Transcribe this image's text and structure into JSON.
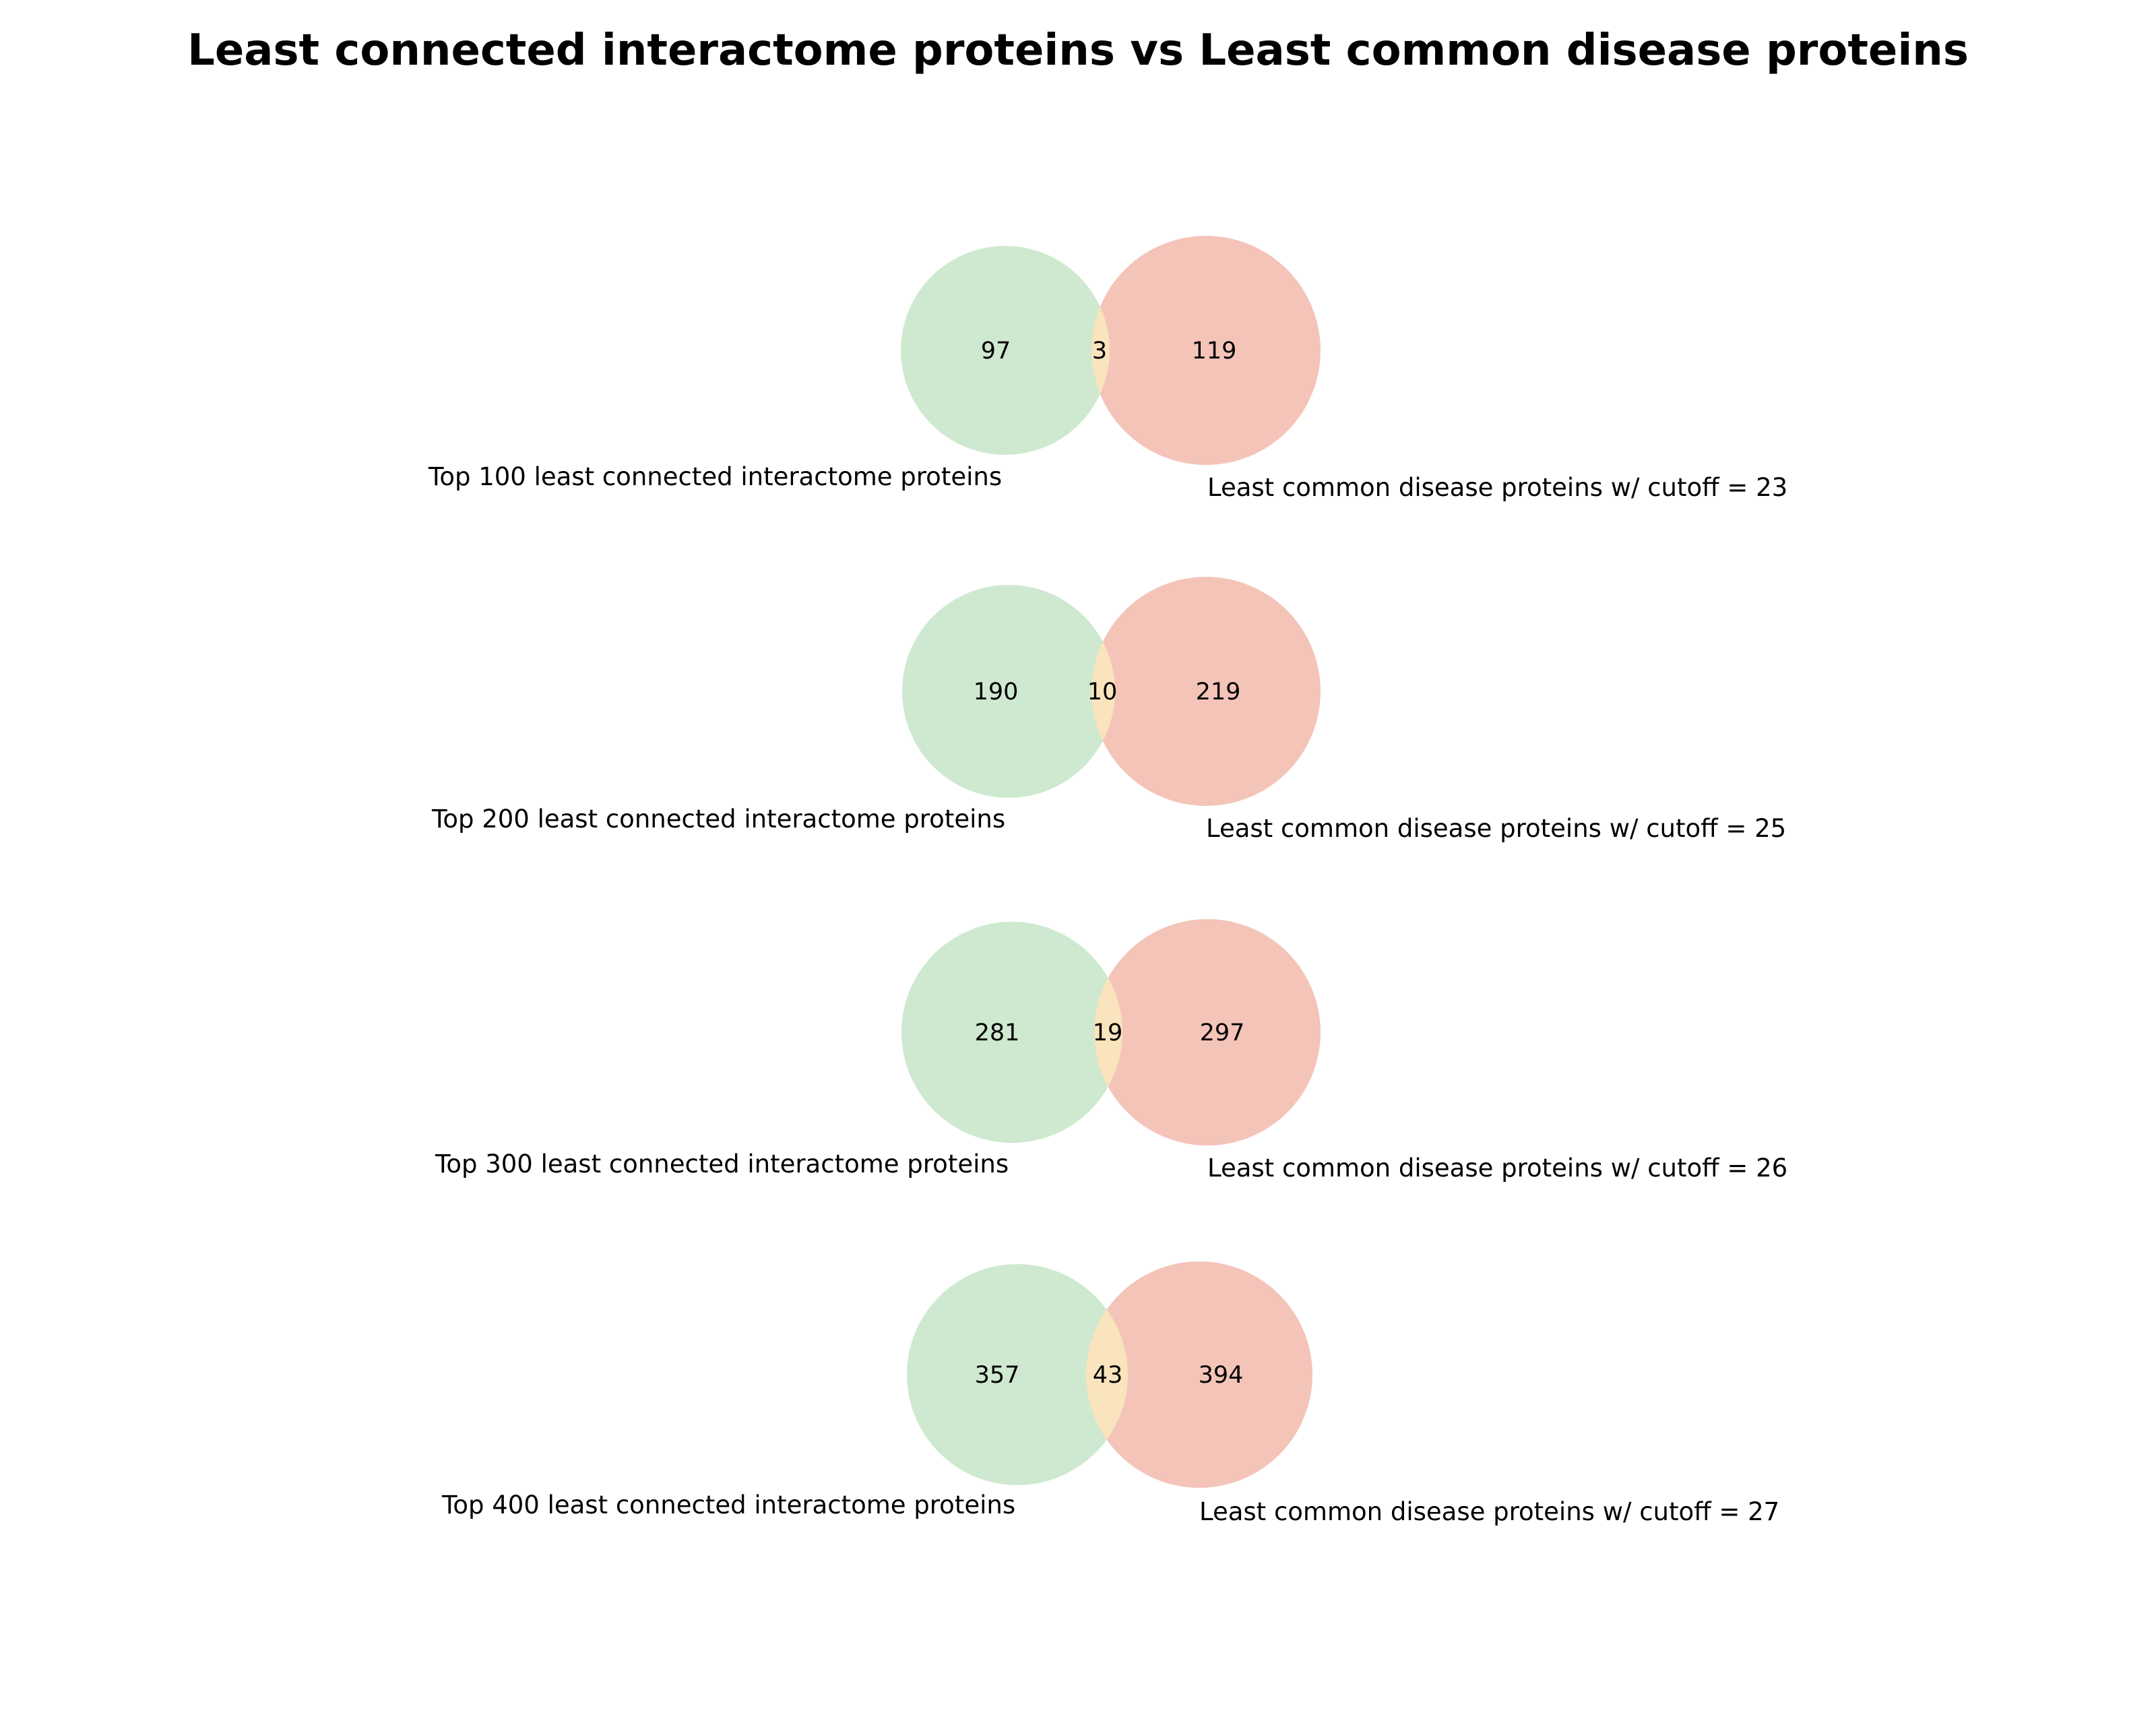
{
  "title": "Least connected interactome proteins vs Least common disease proteins",
  "colors": {
    "left_set": "#cee9cf",
    "right_set": "#f4c4b9",
    "intersection": "#f9e4bd"
  },
  "chart_data": [
    {
      "type": "venn2",
      "left_label": "Top 100 least connected interactome proteins",
      "right_label": "Least common disease proteins w/ cutoff = 23",
      "left_only": "97",
      "intersection": "3",
      "right_only": "119"
    },
    {
      "type": "venn2",
      "left_label": "Top 200 least connected interactome proteins",
      "right_label": "Least common disease proteins w/ cutoff = 25",
      "left_only": "190",
      "intersection": "10",
      "right_only": "219"
    },
    {
      "type": "venn2",
      "left_label": "Top 300 least connected interactome proteins",
      "right_label": "Least common disease proteins w/ cutoff = 26",
      "left_only": "281",
      "intersection": "19",
      "right_only": "297"
    },
    {
      "type": "venn2",
      "left_label": "Top 400 least connected interactome proteins",
      "right_label": "Least common disease proteins w/ cutoff = 27",
      "left_only": "357",
      "intersection": "43",
      "right_only": "394"
    }
  ]
}
